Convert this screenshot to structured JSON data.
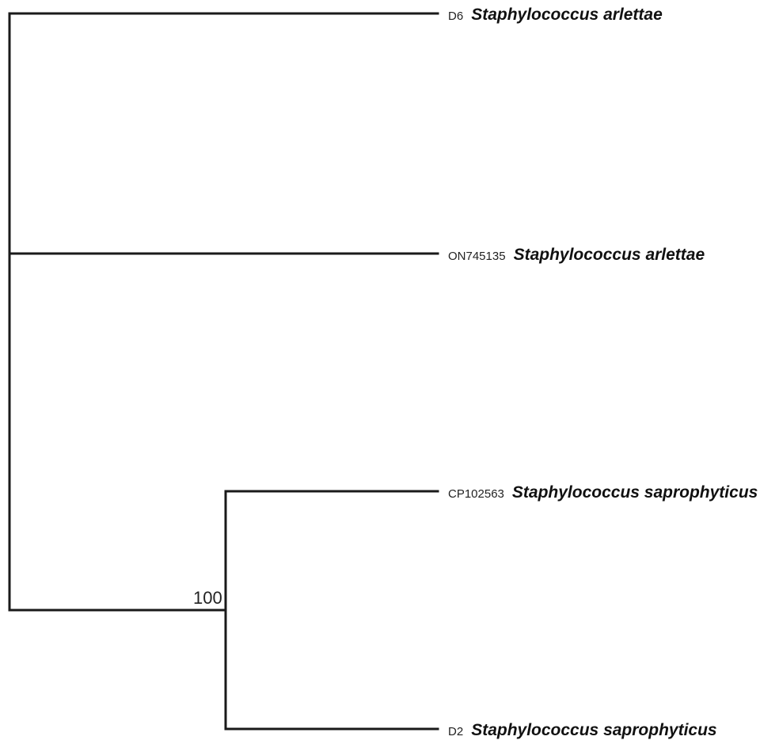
{
  "tree": {
    "leaves": [
      {
        "accession": "D6",
        "species": "Staphylococcus arlettae"
      },
      {
        "accession": "ON745135",
        "species": "Staphylococcus arlettae"
      },
      {
        "accession": "CP102563",
        "species": "Staphylococcus saprophyticus"
      },
      {
        "accession": "D2",
        "species": "Staphylococcus saprophyticus"
      }
    ],
    "support_values": [
      {
        "value": "100"
      }
    ]
  }
}
